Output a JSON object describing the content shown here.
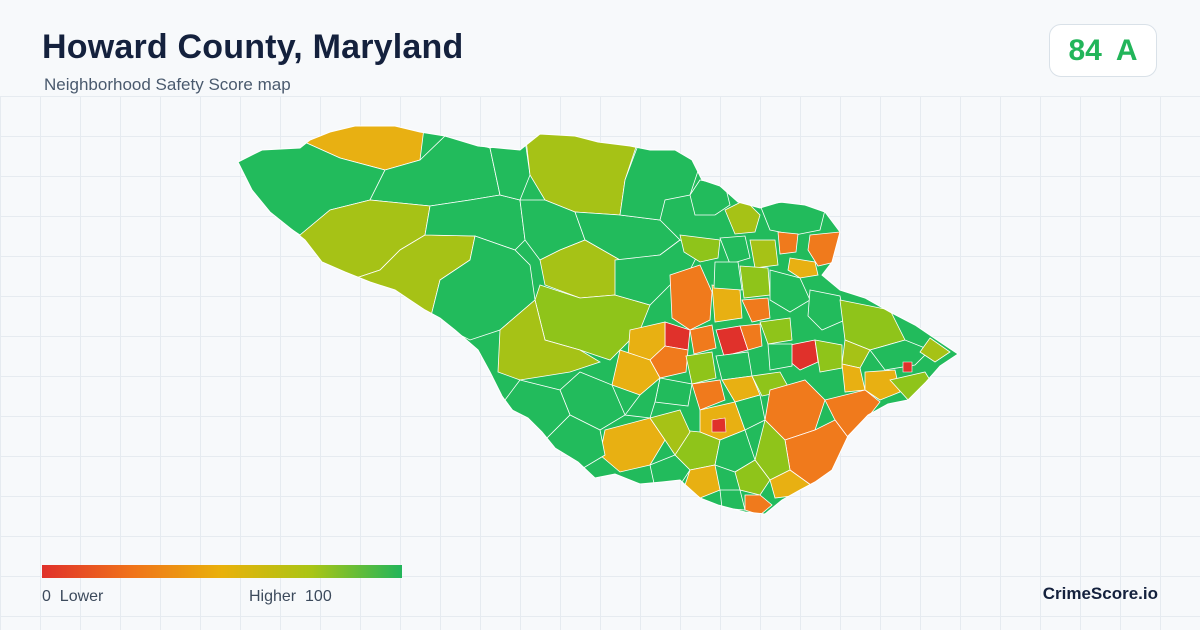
{
  "header": {
    "title": "Howard County, Maryland",
    "subtitle": "Neighborhood Safety Score map"
  },
  "score": {
    "value": "84",
    "grade": "A",
    "color": "#22b55a"
  },
  "legend": {
    "low_label": "0  Lower",
    "high_label": "Higher  100",
    "min": 0,
    "max": 100,
    "colors": [
      "#e0312b",
      "#f0731a",
      "#e9b10b",
      "#a9c515",
      "#22b55a"
    ]
  },
  "brand": {
    "name": "CrimeScore.io"
  }
}
